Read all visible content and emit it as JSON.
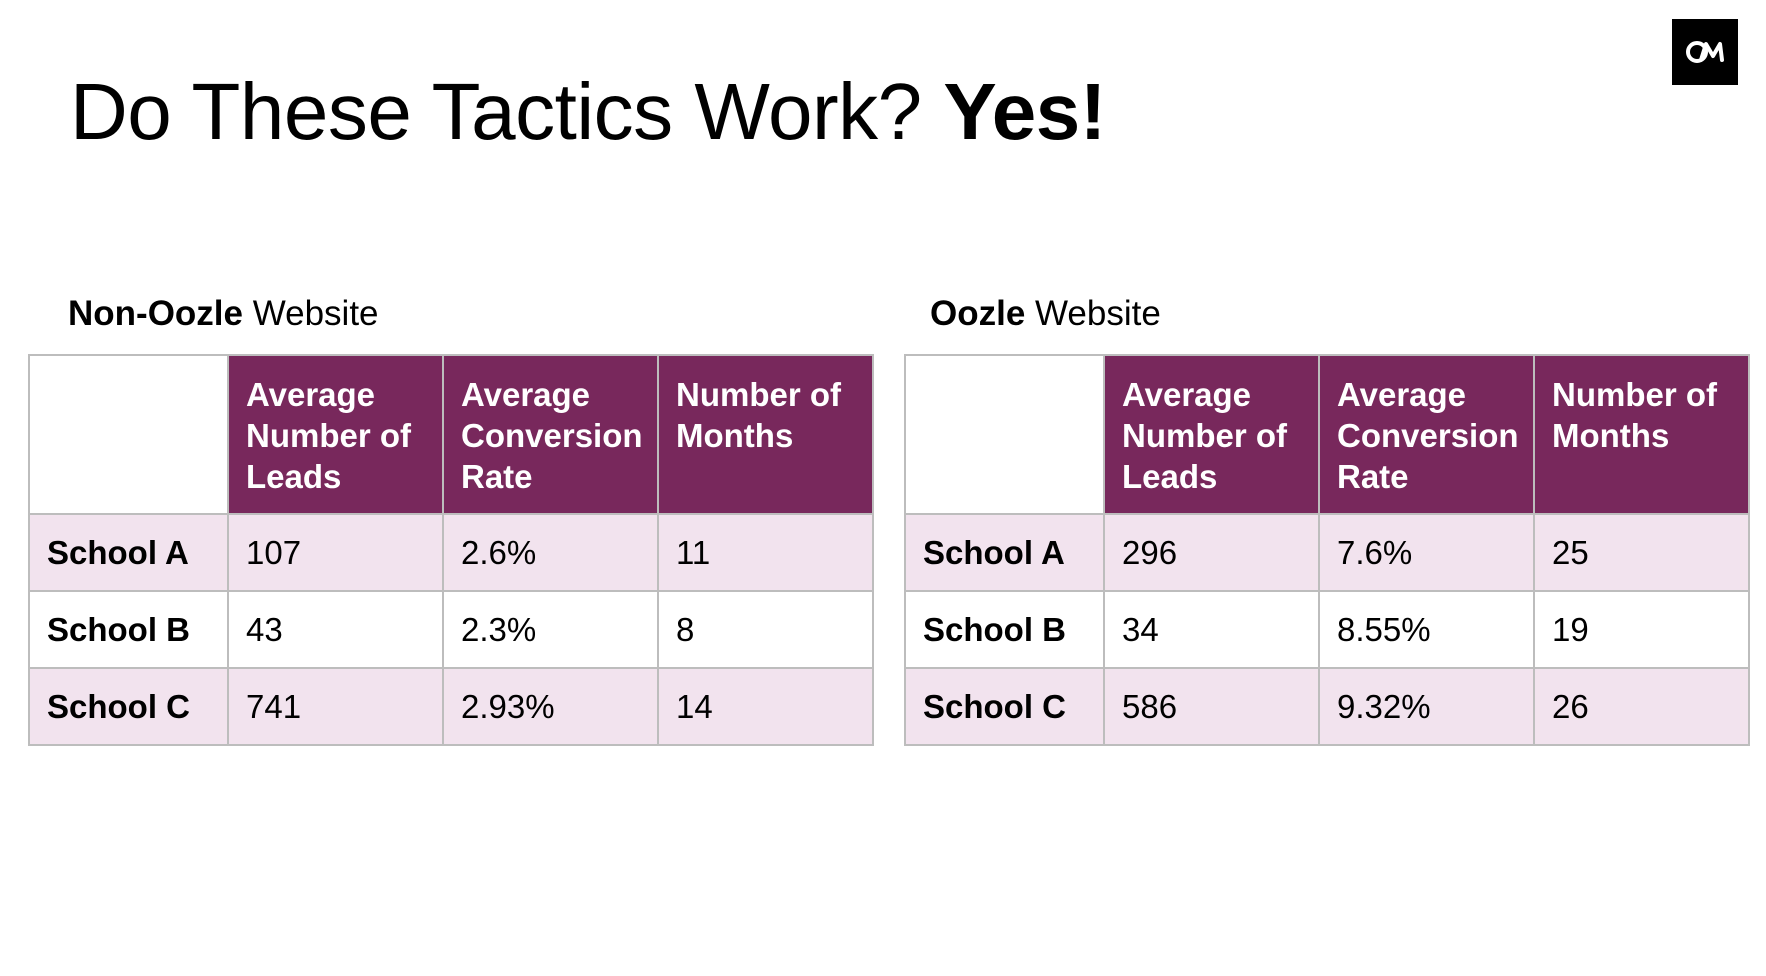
{
  "title": {
    "lead": "Do These Tactics Work?",
    "emphasis": "Yes!"
  },
  "logo": {
    "icon": "om-logo-icon",
    "letters": "OM"
  },
  "tables": [
    {
      "label_bold": "Non-Oozle",
      "label_rest": "Website",
      "headers": [
        "Average Number of Leads",
        "Average Conversion Rate",
        "Number of Months"
      ],
      "rows": [
        {
          "school": "School A",
          "leads": "107",
          "rate": "2.6%",
          "months": "11"
        },
        {
          "school": "School B",
          "leads": "43",
          "rate": "2.3%",
          "months": "8"
        },
        {
          "school": "School C",
          "leads": "741",
          "rate": "2.93%",
          "months": "14"
        }
      ]
    },
    {
      "label_bold": "Oozle",
      "label_rest": "Website",
      "headers": [
        "Average Number of Leads",
        "Average Conversion Rate",
        "Number of Months"
      ],
      "rows": [
        {
          "school": "School A",
          "leads": "296",
          "rate": "7.6%",
          "months": "25"
        },
        {
          "school": "School B",
          "leads": "34",
          "rate": "8.55%",
          "months": "19"
        },
        {
          "school": "School C",
          "leads": "586",
          "rate": "9.32%",
          "months": "26"
        }
      ]
    }
  ],
  "colors": {
    "header_bg": "#78285c",
    "shaded_row_bg": "#f2e3ee",
    "border": "#bdbdbd"
  }
}
